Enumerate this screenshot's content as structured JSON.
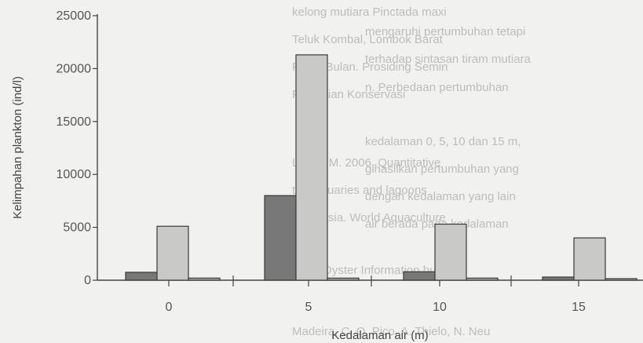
{
  "chart_data": {
    "type": "bar",
    "xlabel": "Kedalaman air (m)",
    "ylabel": "Kelimpahan plankton (ind/l)",
    "ylim": [
      0,
      25000
    ],
    "yticks": [
      0,
      5000,
      10000,
      15000,
      20000,
      25000
    ],
    "categories": [
      "0",
      "5",
      "10",
      "15"
    ],
    "series": [
      {
        "values": [
          750,
          8000,
          800,
          300
        ],
        "color": "#787878"
      },
      {
        "values": [
          5100,
          21300,
          5300,
          4000
        ],
        "color": "#c9c9c7"
      },
      {
        "values": [
          200,
          200,
          200,
          150
        ],
        "color": "#aaaaa8"
      }
    ],
    "grid": false
  },
  "background_text": {
    "lines": [
      "kelong mutiara Pinctada maxi",
      "Teluk Kombal, Lombok Barat",
      "Pulau Bulan. Prosiding Semin",
      "Penelitian Konservasi",
      "Lan, A.M. 2006. Quantitative",
      "the estuaries and lagoons",
      "Indonesia. World Aquaculture",
      "Pearl Oyster Information bulletin",
      "mengaruhi pertumbuhan tetapi",
      "terhadap sintasan tiram mutiara",
      "n. Perbedaan pertumbuhan",
      "kedalaman 0, 5, 10 dan 15 m,",
      "gihasilkan pertumbuhan yang",
      "dengan kedalaman yang lain",
      "air berada pada kedalaman",
      "Madeira, C. O. Pico, A. Thielo, N. Neu"
    ]
  }
}
